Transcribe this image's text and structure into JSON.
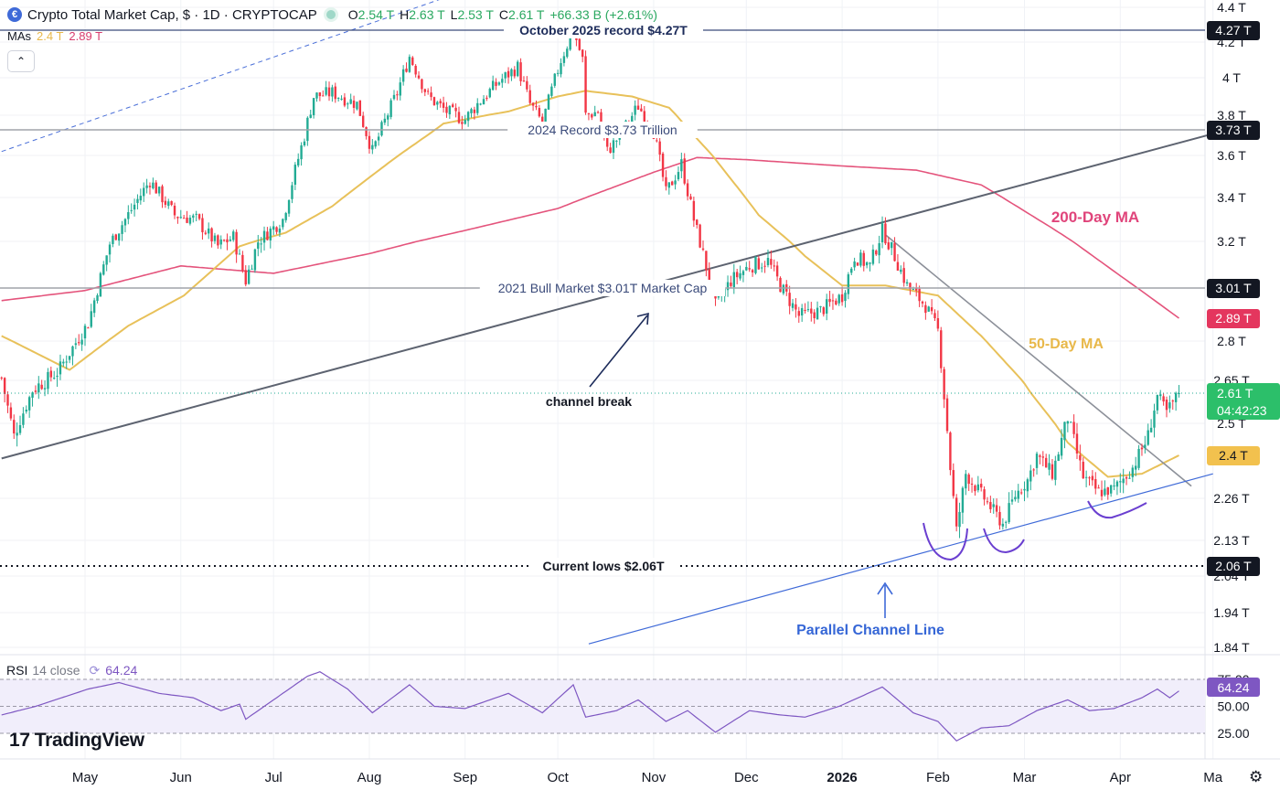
{
  "header": {
    "logo_glyph": "€",
    "title": "Crypto Total Market Cap, $ · 1D · CRYPTOCAP",
    "ohlc": [
      {
        "k": "O",
        "v": "2.54 T"
      },
      {
        "k": "H",
        "v": "2.63 T"
      },
      {
        "k": "L",
        "v": "2.53 T"
      },
      {
        "k": "C",
        "v": "2.61 T"
      }
    ],
    "change": "+66.33 B (+2.61%)"
  },
  "mas": {
    "label": "MAs",
    "v1": "2.4 T",
    "v2": "2.89 T",
    "collapse_icon": "chevron-up"
  },
  "rsi_header": {
    "label": "RSI",
    "params": "14 close",
    "value": "64.24"
  },
  "branding": {
    "logo_mark": "17",
    "logo_text": "TradingView"
  },
  "colors": {
    "up": "#22ab94",
    "down": "#f23645",
    "ma50": "#e8c15a",
    "ma200": "#e4547c",
    "channel": "#4a6fd8",
    "rsi": "#7e57c2"
  },
  "chart_data": {
    "type": "candlestick",
    "title": "Crypto Total Market Cap",
    "y_unit": "T (trillion USD)",
    "ylim": [
      1.8,
      4.45
    ],
    "y_ticks": [
      {
        "v": 4.4,
        "label": "4.4 T"
      },
      {
        "v": 4.2,
        "label": "4.2 T"
      },
      {
        "v": 4.0,
        "label": "4 T"
      },
      {
        "v": 3.8,
        "label": "3.8 T"
      },
      {
        "v": 3.6,
        "label": "3.6 T"
      },
      {
        "v": 3.4,
        "label": "3.4 T"
      },
      {
        "v": 3.2,
        "label": "3.2 T"
      },
      {
        "v": 2.8,
        "label": "2.8 T"
      },
      {
        "v": 2.65,
        "label": "2.65 T"
      },
      {
        "v": 2.5,
        "label": "2.5 T"
      },
      {
        "v": 2.26,
        "label": "2.26 T"
      },
      {
        "v": 2.13,
        "label": "2.13 T"
      },
      {
        "v": 2.04,
        "label": "2.04 T"
      },
      {
        "v": 1.94,
        "label": "1.94 T"
      },
      {
        "v": 1.84,
        "label": "1.84 T"
      }
    ],
    "x_ticks": [
      {
        "date": "2025-05-01",
        "label": "May"
      },
      {
        "date": "2025-06-01",
        "label": "Jun"
      },
      {
        "date": "2025-07-01",
        "label": "Jul"
      },
      {
        "date": "2025-08-01",
        "label": "Aug"
      },
      {
        "date": "2025-09-01",
        "label": "Sep"
      },
      {
        "date": "2025-10-01",
        "label": "Oct"
      },
      {
        "date": "2025-11-01",
        "label": "Nov"
      },
      {
        "date": "2025-12-01",
        "label": "Dec"
      },
      {
        "date": "2026-01-01",
        "label": "2026",
        "bold": true
      },
      {
        "date": "2026-02-01",
        "label": "Feb"
      },
      {
        "date": "2026-03-01",
        "label": "Mar"
      },
      {
        "date": "2026-04-01",
        "label": "Apr"
      },
      {
        "date": "2026-05-01",
        "label": "Ma"
      }
    ],
    "price_path": [
      {
        "d": "2025-04-04",
        "v": 2.66
      },
      {
        "d": "2025-04-08",
        "v": 2.46
      },
      {
        "d": "2025-04-14",
        "v": 2.62
      },
      {
        "d": "2025-04-22",
        "v": 2.68
      },
      {
        "d": "2025-05-02",
        "v": 2.87
      },
      {
        "d": "2025-05-09",
        "v": 3.19
      },
      {
        "d": "2025-05-14",
        "v": 3.3
      },
      {
        "d": "2025-05-22",
        "v": 3.48
      },
      {
        "d": "2025-05-30",
        "v": 3.32
      },
      {
        "d": "2025-06-06",
        "v": 3.3
      },
      {
        "d": "2025-06-13",
        "v": 3.18
      },
      {
        "d": "2025-06-18",
        "v": 3.22
      },
      {
        "d": "2025-06-22",
        "v": 3.04
      },
      {
        "d": "2025-06-26",
        "v": 3.2
      },
      {
        "d": "2025-07-04",
        "v": 3.3
      },
      {
        "d": "2025-07-11",
        "v": 3.7
      },
      {
        "d": "2025-07-14",
        "v": 3.9
      },
      {
        "d": "2025-07-20",
        "v": 3.92
      },
      {
        "d": "2025-07-28",
        "v": 3.86
      },
      {
        "d": "2025-08-02",
        "v": 3.62
      },
      {
        "d": "2025-08-10",
        "v": 3.92
      },
      {
        "d": "2025-08-14",
        "v": 4.12
      },
      {
        "d": "2025-08-20",
        "v": 3.9
      },
      {
        "d": "2025-08-26",
        "v": 3.82
      },
      {
        "d": "2025-09-01",
        "v": 3.78
      },
      {
        "d": "2025-09-05",
        "v": 3.86
      },
      {
        "d": "2025-09-12",
        "v": 3.98
      },
      {
        "d": "2025-09-18",
        "v": 4.06
      },
      {
        "d": "2025-09-22",
        "v": 3.86
      },
      {
        "d": "2025-09-26",
        "v": 3.76
      },
      {
        "d": "2025-10-02",
        "v": 4.1
      },
      {
        "d": "2025-10-06",
        "v": 4.27
      },
      {
        "d": "2025-10-09",
        "v": 4.1
      },
      {
        "d": "2025-10-10",
        "v": 3.8
      },
      {
        "d": "2025-10-14",
        "v": 3.82
      },
      {
        "d": "2025-10-17",
        "v": 3.62
      },
      {
        "d": "2025-10-22",
        "v": 3.72
      },
      {
        "d": "2025-10-27",
        "v": 3.85
      },
      {
        "d": "2025-11-01",
        "v": 3.72
      },
      {
        "d": "2025-11-05",
        "v": 3.42
      },
      {
        "d": "2025-11-10",
        "v": 3.56
      },
      {
        "d": "2025-11-14",
        "v": 3.3
      },
      {
        "d": "2025-11-21",
        "v": 2.94
      },
      {
        "d": "2025-11-26",
        "v": 3.04
      },
      {
        "d": "2025-12-02",
        "v": 3.1
      },
      {
        "d": "2025-12-08",
        "v": 3.12
      },
      {
        "d": "2025-12-12",
        "v": 3.02
      },
      {
        "d": "2025-12-18",
        "v": 2.9
      },
      {
        "d": "2025-12-25",
        "v": 2.92
      },
      {
        "d": "2026-01-01",
        "v": 2.98
      },
      {
        "d": "2026-01-05",
        "v": 3.14
      },
      {
        "d": "2026-01-10",
        "v": 3.1
      },
      {
        "d": "2026-01-14",
        "v": 3.25
      },
      {
        "d": "2026-01-18",
        "v": 3.14
      },
      {
        "d": "2026-01-22",
        "v": 3.02
      },
      {
        "d": "2026-01-28",
        "v": 2.94
      },
      {
        "d": "2026-02-01",
        "v": 2.84
      },
      {
        "d": "2026-02-05",
        "v": 2.36
      },
      {
        "d": "2026-02-07",
        "v": 2.16
      },
      {
        "d": "2026-02-10",
        "v": 2.34
      },
      {
        "d": "2026-02-16",
        "v": 2.26
      },
      {
        "d": "2026-02-22",
        "v": 2.18
      },
      {
        "d": "2026-02-26",
        "v": 2.27
      },
      {
        "d": "2026-03-02",
        "v": 2.32
      },
      {
        "d": "2026-03-05",
        "v": 2.4
      },
      {
        "d": "2026-03-10",
        "v": 2.34
      },
      {
        "d": "2026-03-15",
        "v": 2.52
      },
      {
        "d": "2026-03-20",
        "v": 2.33
      },
      {
        "d": "2026-03-25",
        "v": 2.28
      },
      {
        "d": "2026-03-30",
        "v": 2.29
      },
      {
        "d": "2026-04-05",
        "v": 2.36
      },
      {
        "d": "2026-04-10",
        "v": 2.46
      },
      {
        "d": "2026-04-13",
        "v": 2.6
      },
      {
        "d": "2026-04-16",
        "v": 2.54
      },
      {
        "d": "2026-04-20",
        "v": 2.61
      }
    ],
    "ma50": [
      {
        "d": "2025-04-04",
        "v": 2.82
      },
      {
        "d": "2025-04-26",
        "v": 2.69
      },
      {
        "d": "2025-05-15",
        "v": 2.86
      },
      {
        "d": "2025-06-02",
        "v": 2.98
      },
      {
        "d": "2025-06-20",
        "v": 3.18
      },
      {
        "d": "2025-07-05",
        "v": 3.24
      },
      {
        "d": "2025-07-20",
        "v": 3.36
      },
      {
        "d": "2025-08-05",
        "v": 3.54
      },
      {
        "d": "2025-08-25",
        "v": 3.76
      },
      {
        "d": "2025-09-15",
        "v": 3.82
      },
      {
        "d": "2025-10-01",
        "v": 3.9
      },
      {
        "d": "2025-10-10",
        "v": 3.93
      },
      {
        "d": "2025-10-25",
        "v": 3.9
      },
      {
        "d": "2025-11-06",
        "v": 3.84
      },
      {
        "d": "2025-11-20",
        "v": 3.6
      },
      {
        "d": "2025-12-05",
        "v": 3.32
      },
      {
        "d": "2025-12-20",
        "v": 3.14
      },
      {
        "d": "2026-01-01",
        "v": 3.02
      },
      {
        "d": "2026-01-15",
        "v": 3.02
      },
      {
        "d": "2026-02-01",
        "v": 2.98
      },
      {
        "d": "2026-02-15",
        "v": 2.82
      },
      {
        "d": "2026-03-01",
        "v": 2.64
      },
      {
        "d": "2026-03-15",
        "v": 2.44
      },
      {
        "d": "2026-03-28",
        "v": 2.33
      },
      {
        "d": "2026-04-08",
        "v": 2.34
      },
      {
        "d": "2026-04-20",
        "v": 2.4
      }
    ],
    "ma200": [
      {
        "d": "2025-04-04",
        "v": 2.96
      },
      {
        "d": "2025-05-01",
        "v": 3.0
      },
      {
        "d": "2025-06-01",
        "v": 3.1
      },
      {
        "d": "2025-07-01",
        "v": 3.07
      },
      {
        "d": "2025-08-01",
        "v": 3.15
      },
      {
        "d": "2025-09-01",
        "v": 3.25
      },
      {
        "d": "2025-10-01",
        "v": 3.35
      },
      {
        "d": "2025-11-01",
        "v": 3.52
      },
      {
        "d": "2025-11-15",
        "v": 3.59
      },
      {
        "d": "2025-12-01",
        "v": 3.58
      },
      {
        "d": "2026-01-01",
        "v": 3.55
      },
      {
        "d": "2026-01-25",
        "v": 3.53
      },
      {
        "d": "2026-02-15",
        "v": 3.46
      },
      {
        "d": "2026-03-10",
        "v": 3.26
      },
      {
        "d": "2026-04-01",
        "v": 3.06
      },
      {
        "d": "2026-04-20",
        "v": 2.89
      }
    ],
    "rsi": {
      "ylim": [
        15,
        90
      ],
      "levels": [
        {
          "v": 75,
          "label": "75.00"
        },
        {
          "v": 50,
          "label": "50.00"
        },
        {
          "v": 25,
          "label": "25.00"
        }
      ],
      "path": [
        {
          "d": "2025-04-04",
          "v": 42
        },
        {
          "d": "2025-04-15",
          "v": 50
        },
        {
          "d": "2025-05-02",
          "v": 66
        },
        {
          "d": "2025-05-12",
          "v": 72
        },
        {
          "d": "2025-05-25",
          "v": 62
        },
        {
          "d": "2025-06-05",
          "v": 58
        },
        {
          "d": "2025-06-14",
          "v": 46
        },
        {
          "d": "2025-06-20",
          "v": 52
        },
        {
          "d": "2025-06-22",
          "v": 38
        },
        {
          "d": "2025-06-30",
          "v": 54
        },
        {
          "d": "2025-07-12",
          "v": 78
        },
        {
          "d": "2025-07-16",
          "v": 82
        },
        {
          "d": "2025-07-25",
          "v": 66
        },
        {
          "d": "2025-08-02",
          "v": 44
        },
        {
          "d": "2025-08-14",
          "v": 70
        },
        {
          "d": "2025-08-22",
          "v": 50
        },
        {
          "d": "2025-09-01",
          "v": 48
        },
        {
          "d": "2025-09-15",
          "v": 62
        },
        {
          "d": "2025-09-26",
          "v": 44
        },
        {
          "d": "2025-10-06",
          "v": 70
        },
        {
          "d": "2025-10-10",
          "v": 40
        },
        {
          "d": "2025-10-20",
          "v": 46
        },
        {
          "d": "2025-10-27",
          "v": 56
        },
        {
          "d": "2025-11-05",
          "v": 36
        },
        {
          "d": "2025-11-12",
          "v": 46
        },
        {
          "d": "2025-11-21",
          "v": 26
        },
        {
          "d": "2025-12-02",
          "v": 46
        },
        {
          "d": "2025-12-12",
          "v": 42
        },
        {
          "d": "2025-12-20",
          "v": 40
        },
        {
          "d": "2025-12-31",
          "v": 50
        },
        {
          "d": "2026-01-14",
          "v": 68
        },
        {
          "d": "2026-01-24",
          "v": 44
        },
        {
          "d": "2026-02-01",
          "v": 36
        },
        {
          "d": "2026-02-05",
          "v": 24
        },
        {
          "d": "2026-02-07",
          "v": 18
        },
        {
          "d": "2026-02-15",
          "v": 30
        },
        {
          "d": "2026-02-24",
          "v": 32
        },
        {
          "d": "2026-03-05",
          "v": 46
        },
        {
          "d": "2026-03-15",
          "v": 56
        },
        {
          "d": "2026-03-22",
          "v": 46
        },
        {
          "d": "2026-03-30",
          "v": 48
        },
        {
          "d": "2026-04-08",
          "v": 58
        },
        {
          "d": "2026-04-13",
          "v": 66
        },
        {
          "d": "2026-04-17",
          "v": 58
        },
        {
          "d": "2026-04-20",
          "v": 64.24
        }
      ]
    },
    "h_levels": [
      {
        "v": 4.27,
        "label": "October 2025 record $4.27T",
        "tag": "4.27 T",
        "style": "solid-navy"
      },
      {
        "v": 3.73,
        "label": "2024 Record $3.73 Trillion",
        "tag": "3.73 T",
        "style": "solid-gray"
      },
      {
        "v": 3.01,
        "label": "2021 Bull Market $3.01T Market Cap",
        "tag": "3.01 T",
        "style": "solid-gray"
      },
      {
        "v": 2.06,
        "label": "Current lows $2.06T",
        "tag": "2.06 T",
        "style": "dotted-black"
      }
    ],
    "price_tags": [
      {
        "v": 2.89,
        "text": "2.89 T",
        "kind": "ma200"
      },
      {
        "v": 2.4,
        "text": "2.4 T",
        "kind": "ma50"
      },
      {
        "v": 2.61,
        "text": "2.61 T",
        "sub": "04:42:23",
        "kind": "last"
      }
    ],
    "annotations": [
      {
        "text": "200-Day MA",
        "color": "#e0457b"
      },
      {
        "text": "50-Day MA",
        "color": "#e8b84a"
      },
      {
        "text": "channel break",
        "color": "#131722"
      },
      {
        "text": "Parallel Channel Line",
        "color": "#3566d6"
      }
    ],
    "trendlines": [
      {
        "name": "channel-upper-dashed",
        "from": {
          "d": "2025-04-04",
          "v": 3.62
        },
        "to": {
          "d": "2025-09-10",
          "v": 4.55
        }
      },
      {
        "name": "channel-top",
        "from": {
          "d": "2025-04-04",
          "v": 2.39
        },
        "to": {
          "d": "2026-05-01",
          "v": 3.71
        }
      },
      {
        "name": "descending-resistance",
        "from": {
          "d": "2026-01-15",
          "v": 3.23
        },
        "to": {
          "d": "2026-04-24",
          "v": 2.3
        }
      },
      {
        "name": "parallel-channel",
        "from": {
          "d": "2025-10-11",
          "v": 1.85
        },
        "to": {
          "d": "2026-05-01",
          "v": 2.34
        }
      }
    ]
  }
}
